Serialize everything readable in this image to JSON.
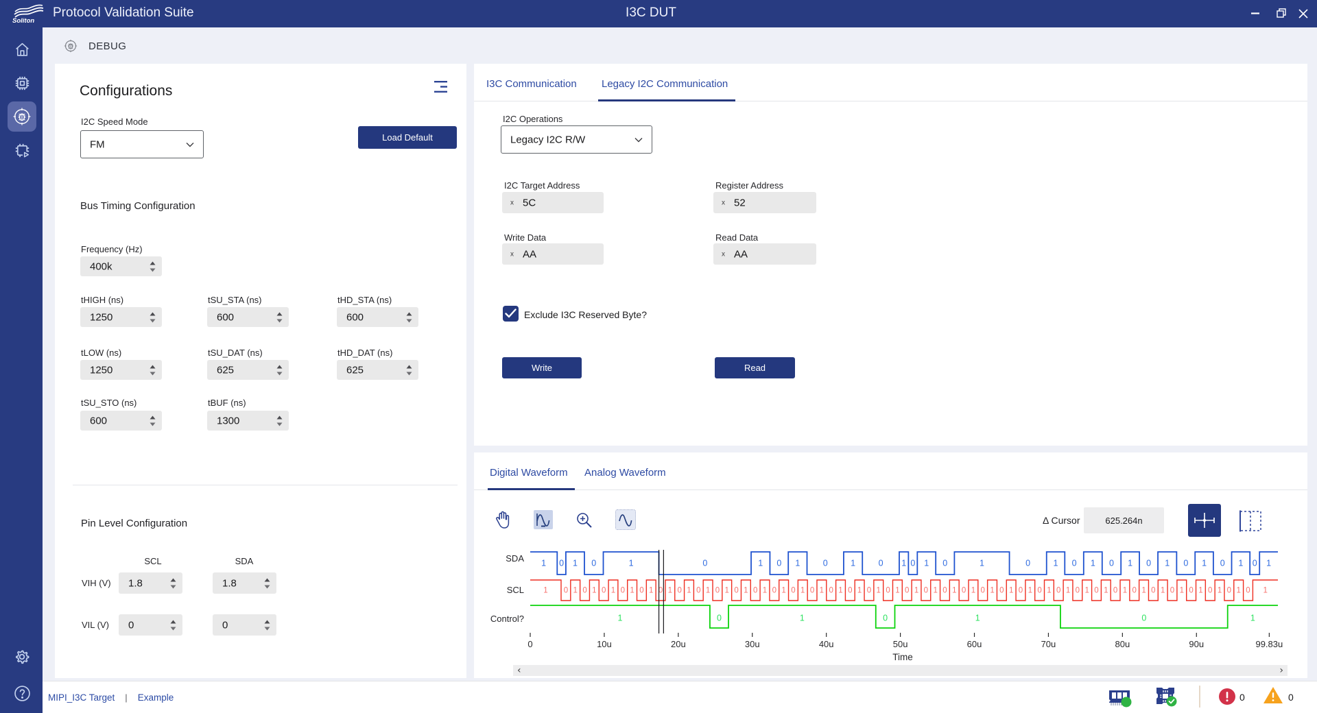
{
  "window": {
    "brand": "Soliton",
    "title": "Protocol Validation Suite",
    "document_title": "I3C DUT",
    "controls": [
      "minimize",
      "restore",
      "close"
    ]
  },
  "sidebar": {
    "items": [
      {
        "icon": "home-icon",
        "selected": false
      },
      {
        "icon": "chip-icon",
        "selected": false
      },
      {
        "icon": "debug-bug-icon",
        "selected": true
      },
      {
        "icon": "chip-run-icon",
        "selected": false
      }
    ],
    "bottom_items": [
      {
        "icon": "settings-gear-icon"
      },
      {
        "icon": "help-icon"
      }
    ]
  },
  "page": {
    "header": "DEBUG"
  },
  "config": {
    "title": "Configurations",
    "menu_icon": "collapse-lines-icon",
    "speed_mode": {
      "label": "I2C Speed Mode",
      "value": "FM"
    },
    "load_default": "Load Default",
    "bus_timing": {
      "heading": "Bus Timing Configuration",
      "frequency": {
        "label": "Frequency (Hz)",
        "value": "400k"
      },
      "fields": [
        {
          "label": "tHIGH (ns)",
          "value": "1250"
        },
        {
          "label": "tSU_STA (ns)",
          "value": "600"
        },
        {
          "label": "tHD_STA (ns)",
          "value": "600"
        },
        {
          "label": "tLOW (ns)",
          "value": "1250"
        },
        {
          "label": "tSU_DAT (ns)",
          "value": "625"
        },
        {
          "label": "tHD_DAT (ns)",
          "value": "625"
        },
        {
          "label": "tSU_STO (ns)",
          "value": "600"
        },
        {
          "label": "tBUF (ns)",
          "value": "1300"
        }
      ]
    },
    "pin_level": {
      "heading": "Pin Level Configuration",
      "columns": [
        "SCL",
        "SDA"
      ],
      "rows": [
        {
          "label": "VIH (V)",
          "values": [
            "1.8",
            "1.8"
          ]
        },
        {
          "label": "VIL (V)",
          "values": [
            "0",
            "0"
          ]
        }
      ]
    }
  },
  "comm": {
    "tabs": [
      {
        "label": "I3C Communication",
        "active": false
      },
      {
        "label": "Legacy I2C Communication",
        "active": true
      }
    ],
    "operations": {
      "label": "I2C Operations",
      "value": "Legacy I2C R/W"
    },
    "fields": [
      {
        "label": "I2C Target Address",
        "prefix": "x",
        "value": "5C"
      },
      {
        "label": "Register Address",
        "prefix": "x",
        "value": "52"
      },
      {
        "label": "Write Data",
        "prefix": "x",
        "value": "AA"
      },
      {
        "label": "Read Data",
        "prefix": "x",
        "value": "AA"
      }
    ],
    "checkbox": {
      "label": "Exclude I3C Reserved Byte?",
      "checked": true
    },
    "write_button": "Write",
    "read_button": "Read"
  },
  "waveform": {
    "tabs": [
      {
        "label": "Digital Waveform",
        "active": true
      },
      {
        "label": "Analog Waveform",
        "active": false
      }
    ],
    "toolbar": {
      "icons": [
        "pan-hand-icon",
        "fit-waveform-icon",
        "zoom-in-icon",
        "waveform-window-icon"
      ],
      "delta_cursor_label": "Δ Cursor",
      "delta_cursor_value": "625.264n",
      "buttons": [
        "cursor-crosshair-icon",
        "cursor-region-icon"
      ]
    },
    "scrollbar": {
      "left_arrow": "‹",
      "right_arrow": "›"
    }
  },
  "statusbar": {
    "target": "MIPI_I3C Target",
    "separator": "|",
    "profile": "Example",
    "icons": [
      "memory-ok-icon",
      "device-ok-icon"
    ],
    "error_count": "0",
    "warning_count": "0"
  },
  "chart_data": {
    "type": "digital-waveform",
    "x_axis": {
      "label": "Time",
      "range_us": [
        0,
        101.0
      ],
      "ticks_us": [
        0,
        10,
        20,
        30,
        40,
        50,
        60,
        70,
        80,
        90,
        99.83
      ],
      "tick_labels": [
        "0",
        "10u",
        "20u",
        "30u",
        "40u",
        "50u",
        "60u",
        "70u",
        "80u",
        "90u",
        "99.83u"
      ]
    },
    "cursors_us": [
      17.38,
      18.01
    ],
    "signals": [
      {
        "name": "SDA",
        "color": "#1e52cf",
        "label_color": "#2f6be0",
        "segments": [
          [
            1,
            0,
            3.64
          ],
          [
            0,
            3.64,
            4.81
          ],
          [
            1,
            4.81,
            7.32
          ],
          [
            0,
            7.32,
            9.87
          ],
          [
            1,
            9.87,
            17.38
          ],
          [
            0,
            17.38,
            29.84
          ],
          [
            1,
            29.84,
            32.38
          ],
          [
            0,
            32.38,
            34.86
          ],
          [
            1,
            34.86,
            37.39
          ],
          [
            0,
            37.39,
            42.34
          ],
          [
            1,
            42.34,
            44.87
          ],
          [
            0,
            44.87,
            49.85
          ],
          [
            1,
            49.85,
            51.09
          ],
          [
            0,
            51.09,
            52.29
          ],
          [
            1,
            52.29,
            54.78
          ],
          [
            0,
            54.78,
            57.3
          ],
          [
            1,
            57.3,
            64.73
          ],
          [
            0,
            64.73,
            69.75
          ],
          [
            1,
            69.75,
            72.21
          ],
          [
            0,
            72.21,
            74.76
          ],
          [
            1,
            74.76,
            77.26
          ],
          [
            0,
            77.26,
            79.8
          ],
          [
            1,
            79.8,
            82.29
          ],
          [
            0,
            82.29,
            84.79
          ],
          [
            1,
            84.79,
            87.32
          ],
          [
            0,
            87.32,
            89.81
          ],
          [
            1,
            89.81,
            92.28
          ],
          [
            0,
            92.28,
            94.75
          ],
          [
            1,
            94.75,
            97.22
          ],
          [
            0,
            97.22,
            98.52
          ],
          [
            1,
            98.52,
            101.0
          ]
        ]
      },
      {
        "name": "SCL",
        "color": "#ee2d20",
        "label_color": "#f8716c",
        "segments": [
          [
            1,
            0.0,
            4.17
          ],
          [
            0,
            4.17,
            5.45
          ],
          [
            1,
            5.45,
            6.73
          ],
          [
            0,
            6.73,
            8.01
          ],
          [
            1,
            8.01,
            9.29
          ],
          [
            0,
            9.29,
            10.57
          ],
          [
            1,
            10.57,
            11.85
          ],
          [
            0,
            11.85,
            13.13
          ],
          [
            1,
            13.13,
            14.41
          ],
          [
            0,
            14.41,
            15.69
          ],
          [
            1,
            15.69,
            16.97
          ],
          [
            0,
            16.97,
            18.25
          ],
          [
            1,
            18.25,
            19.53
          ],
          [
            0,
            19.53,
            20.81
          ],
          [
            1,
            20.81,
            22.09
          ],
          [
            0,
            22.09,
            23.37
          ],
          [
            1,
            23.37,
            24.65
          ],
          [
            0,
            24.65,
            25.93
          ],
          [
            1,
            25.93,
            27.21
          ],
          [
            0,
            27.21,
            28.49
          ],
          [
            1,
            28.49,
            29.77
          ],
          [
            0,
            29.77,
            31.05
          ],
          [
            1,
            31.05,
            32.33
          ],
          [
            0,
            32.33,
            33.61
          ],
          [
            1,
            33.61,
            34.89
          ],
          [
            0,
            34.89,
            36.17
          ],
          [
            1,
            36.17,
            37.45
          ],
          [
            0,
            37.45,
            38.73
          ],
          [
            1,
            38.73,
            40.01
          ],
          [
            0,
            40.01,
            41.29
          ],
          [
            1,
            41.29,
            42.57
          ],
          [
            0,
            42.57,
            43.85
          ],
          [
            1,
            43.85,
            45.13
          ],
          [
            0,
            45.13,
            46.41
          ],
          [
            1,
            46.41,
            47.69
          ],
          [
            0,
            47.69,
            48.97
          ],
          [
            1,
            48.97,
            50.25
          ],
          [
            0,
            50.25,
            51.53
          ],
          [
            1,
            51.53,
            52.81
          ],
          [
            0,
            52.81,
            54.09
          ],
          [
            1,
            54.09,
            55.37
          ],
          [
            0,
            55.37,
            56.65
          ],
          [
            1,
            56.65,
            57.93
          ],
          [
            0,
            57.93,
            59.21
          ],
          [
            1,
            59.21,
            60.49
          ],
          [
            0,
            60.49,
            61.77
          ],
          [
            1,
            61.77,
            63.05
          ],
          [
            0,
            63.05,
            64.33
          ],
          [
            1,
            64.33,
            65.61
          ],
          [
            0,
            65.61,
            66.89
          ],
          [
            1,
            66.89,
            68.17
          ],
          [
            0,
            68.17,
            69.45
          ],
          [
            1,
            69.45,
            70.73
          ],
          [
            0,
            70.73,
            72.01
          ],
          [
            1,
            72.01,
            73.29
          ],
          [
            0,
            73.29,
            74.57
          ],
          [
            1,
            74.57,
            75.85
          ],
          [
            0,
            75.85,
            77.13
          ],
          [
            1,
            77.13,
            78.41
          ],
          [
            0,
            78.41,
            79.69
          ],
          [
            1,
            79.69,
            80.97
          ],
          [
            0,
            80.97,
            82.25
          ],
          [
            1,
            82.25,
            83.53
          ],
          [
            0,
            83.53,
            84.81
          ],
          [
            1,
            84.81,
            86.09
          ],
          [
            0,
            86.09,
            87.37
          ],
          [
            1,
            87.37,
            88.65
          ],
          [
            0,
            88.65,
            89.93
          ],
          [
            1,
            89.93,
            91.21
          ],
          [
            0,
            91.21,
            92.49
          ],
          [
            1,
            92.49,
            93.77
          ],
          [
            0,
            93.77,
            95.05
          ],
          [
            1,
            95.05,
            96.33
          ],
          [
            0,
            96.33,
            97.61
          ],
          [
            1,
            97.61,
            101.0
          ]
        ]
      },
      {
        "name": "Control?",
        "color": "#0bd30b",
        "label_color": "#2ce25f",
        "segments": [
          [
            1,
            0,
            24.27
          ],
          [
            0,
            24.27,
            26.78
          ],
          [
            1,
            26.78,
            46.68
          ],
          [
            0,
            46.68,
            49.25
          ],
          [
            1,
            49.25,
            71.62
          ],
          [
            0,
            71.62,
            94.21
          ],
          [
            1,
            94.21,
            101.0
          ]
        ]
      }
    ]
  }
}
